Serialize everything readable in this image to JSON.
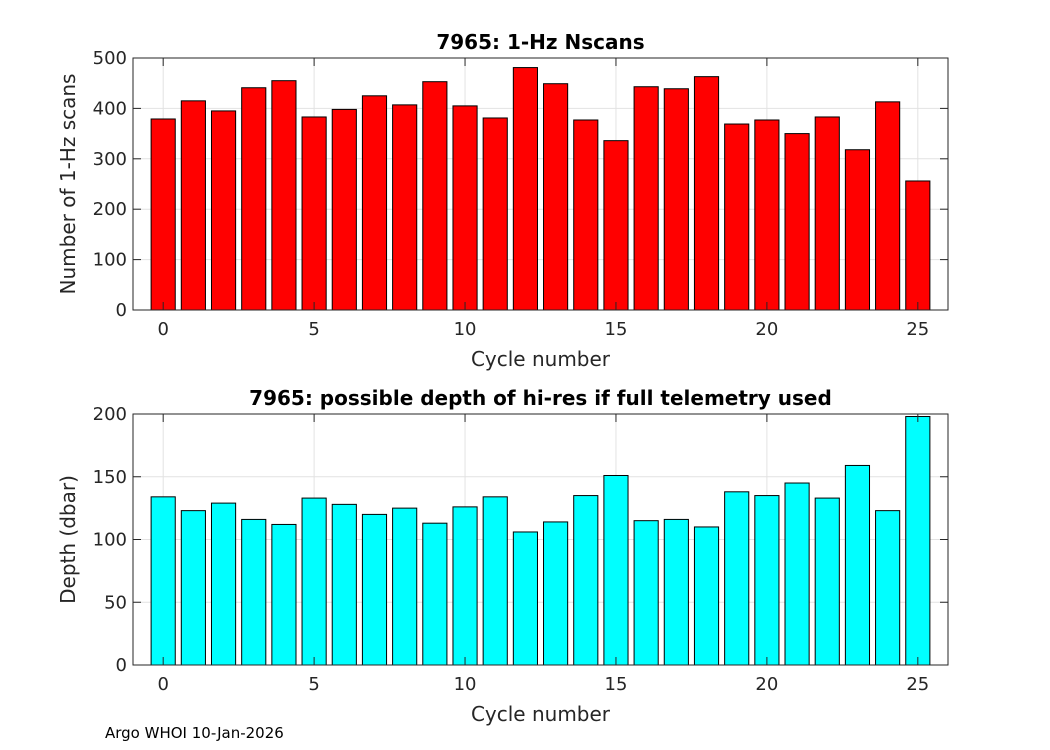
{
  "chart_data": [
    {
      "type": "bar",
      "title": "7965: 1-Hz Nscans",
      "xlabel": "Cycle number",
      "ylabel": "Number of 1-Hz scans",
      "x": [
        0,
        1,
        2,
        3,
        4,
        5,
        6,
        7,
        8,
        9,
        10,
        11,
        12,
        13,
        14,
        15,
        16,
        17,
        18,
        19,
        20,
        21,
        22,
        23,
        24,
        25
      ],
      "values": [
        379,
        415,
        395,
        441,
        455,
        383,
        398,
        425,
        407,
        453,
        405,
        381,
        481,
        449,
        377,
        336,
        443,
        439,
        463,
        369,
        377,
        350,
        383,
        318,
        413,
        256
      ],
      "xlim": [
        -1,
        26
      ],
      "ylim": [
        0,
        500
      ],
      "xticks": [
        0,
        5,
        10,
        15,
        20,
        25
      ],
      "yticks": [
        0,
        100,
        200,
        300,
        400,
        500
      ],
      "grid": true,
      "bar_color": "#ff0000"
    },
    {
      "type": "bar",
      "title": "7965: possible depth of hi-res if full telemetry used",
      "xlabel": "Cycle number",
      "ylabel": "Depth (dbar)",
      "x": [
        0,
        1,
        2,
        3,
        4,
        5,
        6,
        7,
        8,
        9,
        10,
        11,
        12,
        13,
        14,
        15,
        16,
        17,
        18,
        19,
        20,
        21,
        22,
        23,
        24,
        25
      ],
      "values": [
        134,
        123,
        129,
        116,
        112,
        133,
        128,
        120,
        125,
        113,
        126,
        134,
        106,
        114,
        135,
        151,
        115,
        116,
        110,
        138,
        135,
        145,
        133,
        159,
        123,
        198
      ],
      "xlim": [
        -1,
        26
      ],
      "ylim": [
        0,
        200
      ],
      "xticks": [
        0,
        5,
        10,
        15,
        20,
        25
      ],
      "yticks": [
        0,
        50,
        100,
        150,
        200
      ],
      "grid": true,
      "bar_color": "#00ffff"
    }
  ],
  "footer": "Argo WHOI 10-Jan-2026"
}
